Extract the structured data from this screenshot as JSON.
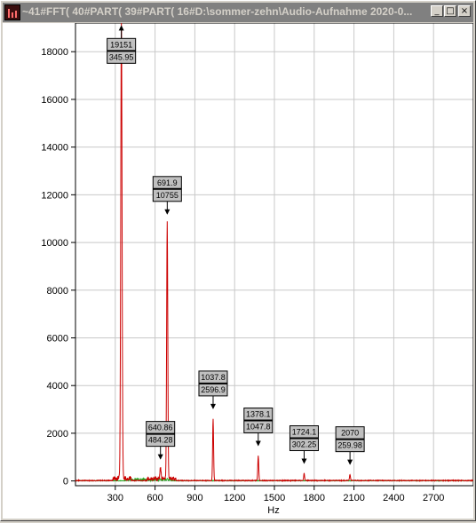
{
  "window": {
    "title": "~41#FFT( 40#PART( 39#PART( 16#D:\\sommer-zehn\\Audio-Aufnahme 2020-0...",
    "minimize_glyph": "_",
    "maximize_glyph": "□",
    "close_glyph": "×"
  },
  "colors": {
    "spectrum": "#cc0000",
    "secondary": "#22aa22",
    "grid": "#c8c8c8",
    "label_bg": "#c0c0c0"
  },
  "chart_data": {
    "type": "line",
    "xlabel": "Hz",
    "ylabel": "",
    "xlim": [
      0,
      3000
    ],
    "ylim": [
      -200,
      19200
    ],
    "xticks": [
      300,
      600,
      900,
      1200,
      1500,
      1800,
      2100,
      2400,
      2700
    ],
    "yticks": [
      0,
      2000,
      4000,
      6000,
      8000,
      10000,
      12000,
      14000,
      16000,
      18000
    ],
    "grid": true,
    "peaks": [
      {
        "x": 345.95,
        "y": 19151,
        "label_top": "19151",
        "label_bottom": "345.95",
        "arrow": "up"
      },
      {
        "x": 691.9,
        "y": 10755,
        "label_top": "691.9",
        "label_bottom": "10755",
        "arrow": "down"
      },
      {
        "x": 1037.8,
        "y": 2596.9,
        "label_top": "1037.8",
        "label_bottom": "2596.9",
        "arrow": "down"
      },
      {
        "x": 1378.1,
        "y": 1047.8,
        "label_top": "1378.1",
        "label_bottom": "1047.8",
        "arrow": "down"
      },
      {
        "x": 1724.1,
        "y": 302.25,
        "label_top": "1724.1",
        "label_bottom": "302.25",
        "arrow": "down"
      },
      {
        "x": 2070,
        "y": 259.98,
        "label_top": "2070",
        "label_bottom": "259.98",
        "arrow": "down"
      },
      {
        "x": 640.86,
        "y": 484.28,
        "label_top": "640.86",
        "label_bottom": "484.28",
        "arrow": "down"
      }
    ]
  }
}
